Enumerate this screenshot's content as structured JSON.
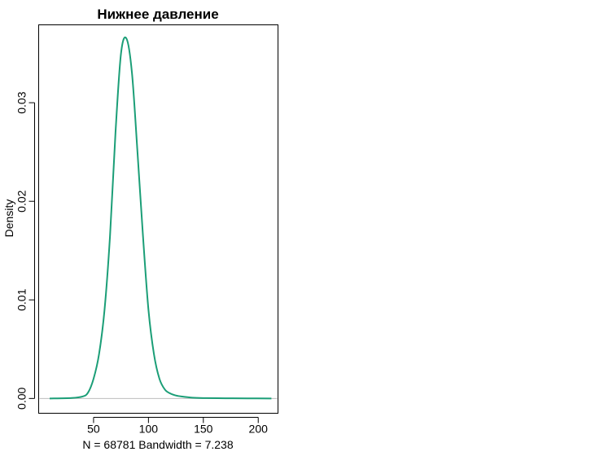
{
  "chart_data": {
    "type": "line",
    "title": "Нижнее давление",
    "xlabel": "N = 68781   Bandwidth = 7.238",
    "ylabel": "Density",
    "xlim": [
      0,
      218
    ],
    "ylim": [
      -0.0015,
      0.0379
    ],
    "x_ticks": [
      50,
      100,
      150,
      200
    ],
    "x_tick_labels": [
      "50",
      "100",
      "150",
      "200"
    ],
    "y_ticks": [
      0.0,
      0.01,
      0.02,
      0.03
    ],
    "y_tick_labels": [
      "0.00",
      "0.01",
      "0.02",
      "0.03"
    ],
    "grid": false,
    "baseline": 0,
    "colors": {
      "curve": "#1b9e77",
      "baseline": "#bebebe",
      "axis": "#000000"
    },
    "series": [
      {
        "x": [
          10,
          30,
          40,
          45,
          50,
          55,
          60,
          65,
          70,
          75,
          80,
          85,
          90,
          95,
          100,
          105,
          110,
          115,
          120,
          125,
          130,
          140,
          150,
          170,
          190,
          212
        ],
        "y": [
          0.0,
          5e-05,
          0.0002,
          0.0006,
          0.002,
          0.0045,
          0.009,
          0.0165,
          0.027,
          0.035,
          0.0365,
          0.033,
          0.025,
          0.0165,
          0.009,
          0.0045,
          0.002,
          0.0009,
          0.0005,
          0.0003,
          0.0002,
          8e-05,
          4e-05,
          2e-05,
          1e-05,
          0.0
        ]
      }
    ]
  }
}
